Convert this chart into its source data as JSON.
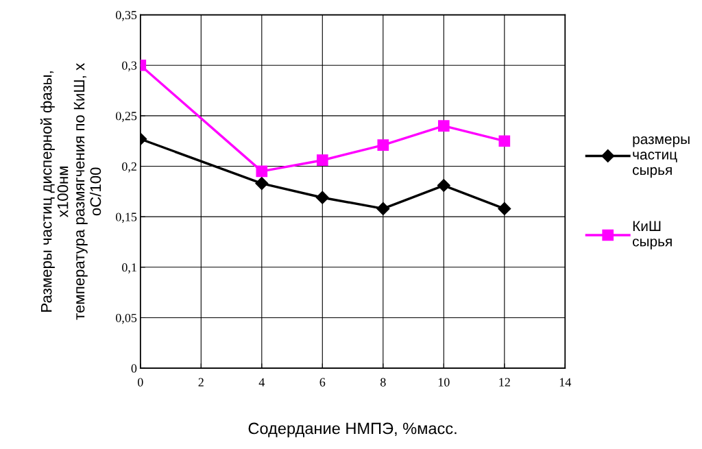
{
  "chart_data": {
    "type": "line",
    "xlabel": "Содердание НМПЭ, %масс.",
    "ylabel": "Размеры частиц дисперной фазы,\nх100нм\nтемпература размягчения по КиШ, х\nоС/100",
    "x": [
      0,
      4,
      6,
      8,
      10,
      12
    ],
    "series": [
      {
        "name": "размеры частиц сырья",
        "color": "#000000",
        "marker": "diamond",
        "values": [
          0.227,
          0.183,
          0.169,
          0.158,
          0.181,
          0.158
        ]
      },
      {
        "name": "КиШ сырья",
        "color": "#ff00ff",
        "marker": "square",
        "values": [
          0.3,
          0.195,
          0.206,
          0.221,
          0.24,
          0.225
        ]
      }
    ],
    "xlim": [
      0,
      14
    ],
    "xticks": [
      0,
      2,
      4,
      6,
      8,
      10,
      12,
      14
    ],
    "ylim": [
      0,
      0.35
    ],
    "yticks": [
      0,
      {
        "value": 0.05,
        "label": "0,05"
      },
      {
        "value": 0.1,
        "label": "0,1"
      },
      {
        "value": 0.15,
        "label": "0,15"
      },
      {
        "value": 0.2,
        "label": "0,2"
      },
      {
        "value": 0.25,
        "label": "0,25"
      },
      {
        "value": 0.3,
        "label": "0,3"
      },
      {
        "value": 0.35,
        "label": "0,35"
      }
    ],
    "grid": true,
    "legend": "right",
    "line_style": "solid"
  }
}
